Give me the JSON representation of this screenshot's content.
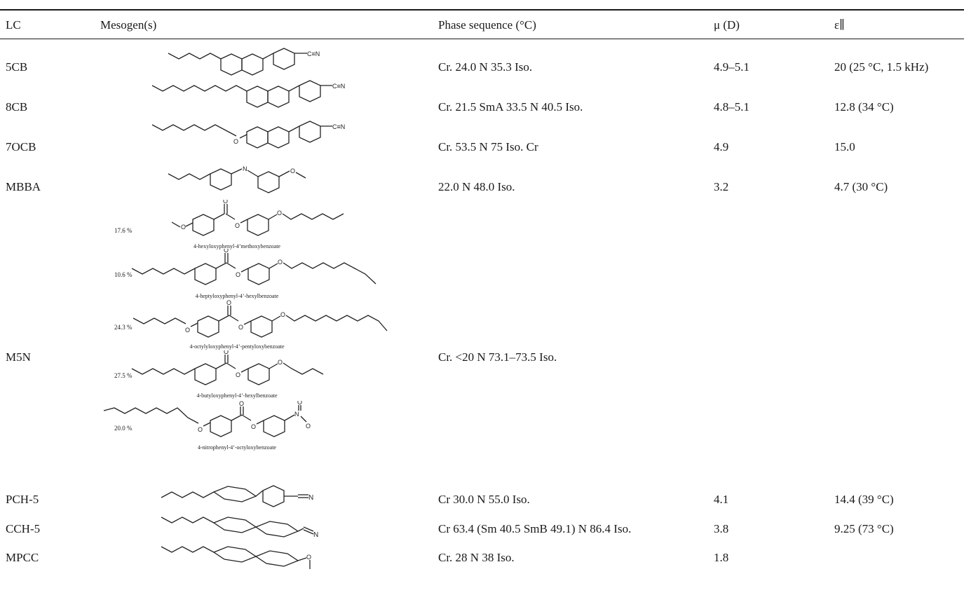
{
  "table": {
    "columns": [
      "LC",
      "Mesogen(s)",
      "Phase sequence (°C)",
      "μ (D)",
      "ε∥"
    ],
    "rows": [
      {
        "lc": "5CB",
        "phase": "Cr. 24.0 N 35.3 Iso.",
        "mu": "4.9–5.1",
        "eps": "20 (25 °C, 1.5 kHz)"
      },
      {
        "lc": "8CB",
        "phase": "Cr. 21.5 SmA 33.5 N 40.5 Iso.",
        "mu": "4.8–5.1",
        "eps": "12.8 (34 °C)"
      },
      {
        "lc": "7OCB",
        "phase": "Cr. 53.5 N 75 Iso. Cr",
        "mu": "4.9",
        "eps": "15.0"
      },
      {
        "lc": "MBBA",
        "phase": "22.0 N 48.0 Iso.",
        "mu": "3.2",
        "eps": "4.7 (30 °C)"
      },
      {
        "lc": "M5N",
        "phase": "Cr. <20 N 73.1–73.5 Iso.",
        "mu": "",
        "eps": ""
      },
      {
        "lc": "PCH-5",
        "phase": "Cr 30.0 N 55.0 Iso.",
        "mu": "4.1",
        "eps": "14.4 (39 °C)"
      },
      {
        "lc": "CCH-5",
        "phase": "Cr 63.4 (Sm 40.5 SmB 49.1) N 86.4 Iso.",
        "mu": "3.8",
        "eps": "9.25 (73 °C)"
      },
      {
        "lc": "MPCC",
        "phase": "Cr. 28 N 38 Iso.",
        "mu": "1.8",
        "eps": ""
      }
    ],
    "m5n_components": [
      {
        "percent": "17.6 %",
        "name": "4-hexyloxyphenyl-4’methoxybenzoate"
      },
      {
        "percent": "10.6 %",
        "name": "4-heptyloxyphenyl-4’-hexylbenzoate"
      },
      {
        "percent": "24.3 %",
        "name": "4-octylyloxyphenyl-4’-pentyloxybenzoate"
      },
      {
        "percent": "27.5 %",
        "name": "4-butyloxyphenyl-4’-hexylbenzoate"
      },
      {
        "percent": "20.0 %",
        "name": "4-nitrophenyl-4’-octyloxybenzoate"
      }
    ],
    "atom_labels": {
      "nitrile": "C≡N",
      "nitrile_n": "N",
      "oxygen": "O",
      "imine_n": "N",
      "nitro_n": "N"
    }
  }
}
